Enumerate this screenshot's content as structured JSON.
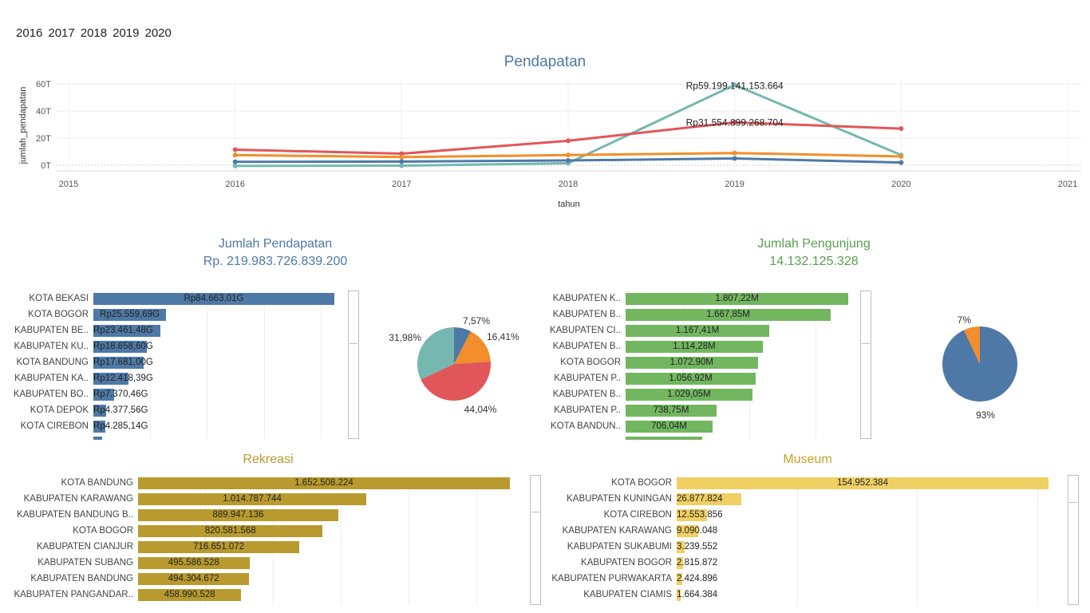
{
  "filter": {
    "years": [
      "2016",
      "2017",
      "2018",
      "2019",
      "2020"
    ]
  },
  "line_chart": {
    "title": "Pendapatan",
    "ylabel": "jumlah_pendapatan",
    "xlabel": "tahun",
    "x_ticks": [
      "2015",
      "2016",
      "2017",
      "2018",
      "2019",
      "2020",
      "2021"
    ],
    "y_ticks": [
      "0T",
      "20T",
      "40T",
      "60T"
    ],
    "annotations": [
      "Rp59.199.141.153.664",
      "Rp31.554.899.268.704"
    ],
    "colors": {
      "blue": "#4e79a7",
      "orange": "#f28e2b",
      "red": "#e15759",
      "teal": "#76b7b2"
    }
  },
  "pendapatan_panel": {
    "title": "Jumlah Pendapatan",
    "total": "Rp. 219.983.726.839.200"
  },
  "pengunjung_panel": {
    "title": "Jumlah Pengunjung",
    "total": "14.132.125.328"
  },
  "rekreasi_panel": {
    "title": "Rekreasi"
  },
  "museum_panel": {
    "title": "Museum"
  },
  "chart_data": [
    {
      "type": "line",
      "title": "Pendapatan",
      "xlabel": "tahun",
      "ylabel": "jumlah_pendapatan",
      "x": [
        2016,
        2017,
        2018,
        2019,
        2020
      ],
      "xlim": [
        2015,
        2021
      ],
      "ylim": [
        0,
        60
      ],
      "y_unit": "T",
      "series": [
        {
          "color": "#76b7b2",
          "values": [
            -0.5,
            -0.3,
            1.5,
            59.2,
            7.5
          ]
        },
        {
          "color": "#e15759",
          "values": [
            11.5,
            8.5,
            18,
            31.55,
            27
          ]
        },
        {
          "color": "#f28e2b",
          "values": [
            7.5,
            6,
            7.5,
            9,
            6.5
          ]
        },
        {
          "color": "#4e79a7",
          "values": [
            2.5,
            2.7,
            3.5,
            5,
            2
          ]
        }
      ]
    },
    {
      "type": "bar",
      "title": "Jumlah Pendapatan",
      "categories": [
        "KOTA BEKASI",
        "KOTA BOGOR",
        "KABUPATEN BE..",
        "KABUPATEN KU..",
        "KOTA BANDUNG",
        "KABUPATEN KA..",
        "KABUPATEN BO..",
        "KOTA DEPOK",
        "KOTA CIREBON"
      ],
      "value_labels": [
        "Rp84.663,01G",
        "Rp25.559,69G",
        "Rp23.461,48G",
        "Rp18.658,60G",
        "Rp17.681,00G",
        "Rp12.418,39G",
        "Rp7.370,46G",
        "Rp4.377,56G",
        "Rp4.285,14G"
      ],
      "values": [
        84663.01,
        25559.69,
        23461.48,
        18658.6,
        17681.0,
        12418.39,
        7370.46,
        4377.56,
        4285.14
      ],
      "color": "#4e79a7"
    },
    {
      "type": "pie",
      "slices": [
        {
          "label": "7,57%",
          "value": 7.57,
          "color": "#4e79a7"
        },
        {
          "label": "16,41%",
          "value": 16.41,
          "color": "#f28e2b"
        },
        {
          "label": "44,04%",
          "value": 44.04,
          "color": "#e15759"
        },
        {
          "label": "31,98%",
          "value": 31.98,
          "color": "#76b7b2"
        }
      ]
    },
    {
      "type": "bar",
      "title": "Jumlah Pengunjung",
      "categories": [
        "KABUPATEN K..",
        "KABUPATEN B..",
        "KABUPATEN CI..",
        "KABUPATEN B..",
        "KOTA BOGOR",
        "KABUPATEN P..",
        "KABUPATEN B..",
        "KABUPATEN P..",
        "KOTA BANDUN.."
      ],
      "value_labels": [
        "1.807,22M",
        "1.667,85M",
        "1.167,41M",
        "1.114,28M",
        "1.072,90M",
        "1.056,92M",
        "1.029,05M",
        "738,75M",
        "706,04M"
      ],
      "values": [
        1807.22,
        1667.85,
        1167.41,
        1114.28,
        1072.9,
        1056.92,
        1029.05,
        738.75,
        706.04
      ],
      "color": "#72b660"
    },
    {
      "type": "pie",
      "slices": [
        {
          "label": "93%",
          "value": 93,
          "color": "#4e79a7"
        },
        {
          "label": "7%",
          "value": 7,
          "color": "#f28e2b"
        }
      ]
    },
    {
      "type": "bar",
      "title": "Rekreasi",
      "categories": [
        "KOTA BANDUNG",
        "KABUPATEN KARAWANG",
        "KABUPATEN BANDUNG B..",
        "KOTA BOGOR",
        "KABUPATEN CIANJUR",
        "KABUPATEN SUBANG",
        "KABUPATEN BANDUNG",
        "KABUPATEN PANGANDAR.."
      ],
      "value_labels": [
        "1.652.508.224",
        "1.014.787.744",
        "889.947.136",
        "820.581.568",
        "716.651.072",
        "495.586.528",
        "494.304.672",
        "458.990.528"
      ],
      "values": [
        1652508224,
        1014787744,
        889947136,
        820581568,
        716651072,
        495586528,
        494304672,
        458990528
      ],
      "color": "#b89a2e"
    },
    {
      "type": "bar",
      "title": "Museum",
      "categories": [
        "KOTA BOGOR",
        "KABUPATEN KUNINGAN",
        "KOTA CIREBON",
        "KABUPATEN KARAWANG",
        "KABUPATEN SUKABUMI",
        "KABUPATEN BOGOR",
        "KABUPATEN PURWAKARTA",
        "KABUPATEN CIAMIS"
      ],
      "value_labels": [
        "154.952.384",
        "26.877.824",
        "12.553.856",
        "9.090.048",
        "3.239.552",
        "2.815.872",
        "2.424.896",
        "1.664.384"
      ],
      "values": [
        154952384,
        26877824,
        12553856,
        9090048,
        3239552,
        2815872,
        2424896,
        1664384
      ],
      "color": "#f0cf63"
    }
  ]
}
